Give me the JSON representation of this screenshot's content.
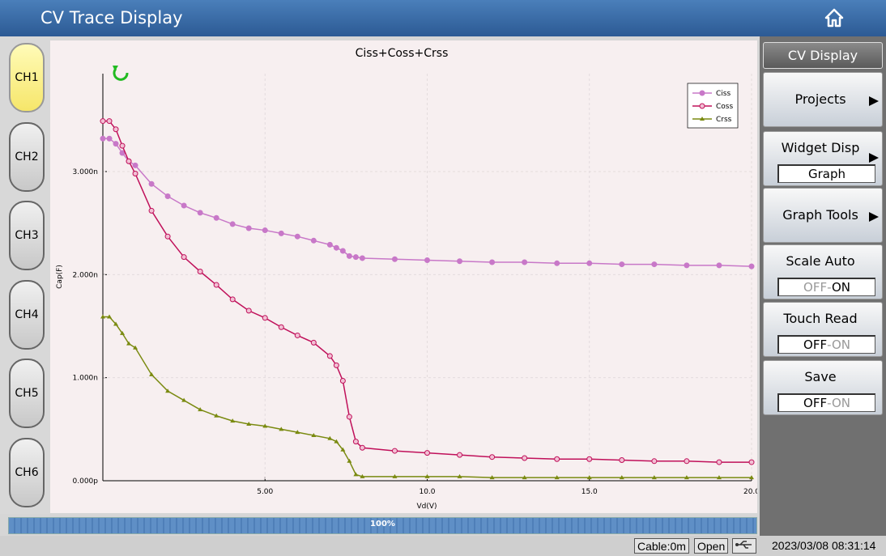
{
  "header": {
    "title": "CV Trace Display"
  },
  "channels": [
    "CH1",
    "CH2",
    "CH3",
    "CH4",
    "CH5",
    "CH6"
  ],
  "selected_channel": "CH1",
  "menu": {
    "title": "CV Display",
    "items": [
      {
        "label": "Projects",
        "arrow": true
      },
      {
        "label": "Widget Disp",
        "arrow": true,
        "value": "Graph"
      },
      {
        "label": "Graph Tools",
        "arrow": true
      },
      {
        "label": "Scale Auto",
        "options": [
          "OFF",
          "ON"
        ],
        "separator": "-",
        "selected": "ON"
      },
      {
        "label": "Touch Read",
        "options": [
          "OFF",
          "ON"
        ],
        "separator": "-",
        "selected": "OFF"
      },
      {
        "label": "Save",
        "options": [
          "OFF",
          "ON"
        ],
        "separator": "-",
        "selected": "OFF"
      }
    ]
  },
  "progress": {
    "value": 100,
    "label": "100%"
  },
  "status": {
    "cable": "Cable:0m",
    "state": "Open",
    "datetime": "2023/03/08 08:31:14"
  },
  "chart_data": {
    "type": "line",
    "title": "Ciss+Coss+Crss",
    "x_label": "Vd(V)",
    "y_label": "Cap(F)",
    "x": [
      0,
      0.2,
      0.4,
      0.6,
      0.8,
      1,
      1.5,
      2,
      2.5,
      3,
      3.5,
      4,
      4.5,
      5,
      5.5,
      6,
      6.5,
      7,
      7.2,
      7.4,
      7.6,
      7.8,
      8,
      9,
      10,
      11,
      12,
      13,
      14,
      15,
      16,
      17,
      18,
      19,
      20
    ],
    "series": [
      {
        "name": "Ciss",
        "color": "#c878c8",
        "marker": "circle",
        "values": [
          3.32,
          3.32,
          3.27,
          3.18,
          3.1,
          3.06,
          2.88,
          2.76,
          2.67,
          2.6,
          2.55,
          2.49,
          2.45,
          2.43,
          2.4,
          2.37,
          2.33,
          2.29,
          2.26,
          2.23,
          2.18,
          2.17,
          2.16,
          2.15,
          2.14,
          2.13,
          2.12,
          2.12,
          2.11,
          2.11,
          2.1,
          2.1,
          2.09,
          2.09,
          2.08
        ]
      },
      {
        "name": "Coss",
        "color": "#c0105a",
        "marker": "circle-open",
        "values": [
          3.49,
          3.49,
          3.41,
          3.25,
          3.1,
          2.98,
          2.62,
          2.37,
          2.17,
          2.03,
          1.9,
          1.76,
          1.65,
          1.58,
          1.49,
          1.41,
          1.34,
          1.21,
          1.12,
          0.97,
          0.62,
          0.38,
          0.32,
          0.29,
          0.27,
          0.25,
          0.23,
          0.22,
          0.21,
          0.21,
          0.2,
          0.19,
          0.19,
          0.18,
          0.18
        ]
      },
      {
        "name": "Crss",
        "color": "#7a8a10",
        "marker": "triangle",
        "values": [
          1.59,
          1.59,
          1.52,
          1.43,
          1.33,
          1.29,
          1.03,
          0.87,
          0.78,
          0.69,
          0.63,
          0.58,
          0.55,
          0.53,
          0.5,
          0.47,
          0.44,
          0.41,
          0.38,
          0.3,
          0.19,
          0.06,
          0.04,
          0.04,
          0.04,
          0.04,
          0.03,
          0.03,
          0.03,
          0.03,
          0.03,
          0.03,
          0.03,
          0.03,
          0.03
        ]
      }
    ],
    "xlim": [
      0,
      20
    ],
    "xticks": [
      {
        "value": 5,
        "label": "5.00"
      },
      {
        "value": 10,
        "label": "10.0"
      },
      {
        "value": 15,
        "label": "15.0"
      },
      {
        "value": 20,
        "label": "20.0"
      }
    ],
    "ylim": [
      0,
      3.95
    ],
    "yticks": [
      {
        "value": 0,
        "label": "0.000p"
      },
      {
        "value": 1,
        "label": "1.000n"
      },
      {
        "value": 2,
        "label": "2.000n"
      },
      {
        "value": 3,
        "label": "3.000n"
      }
    ],
    "grid": true,
    "legend": "top-right"
  }
}
